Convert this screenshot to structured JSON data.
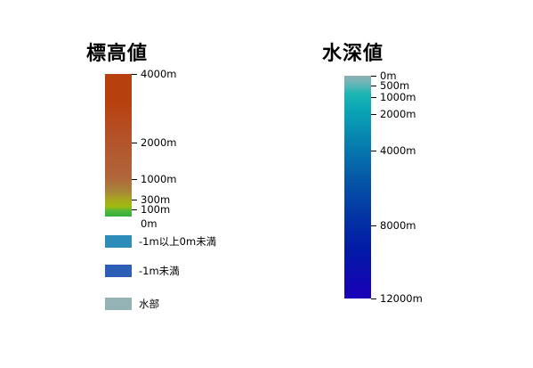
{
  "elevation": {
    "title": "標高値",
    "ticks": [
      {
        "label": "4000m",
        "frac": 0.0
      },
      {
        "label": "2000m",
        "frac": 0.48
      },
      {
        "label": "1000m",
        "frac": 0.74
      },
      {
        "label": "300m",
        "frac": 0.88
      },
      {
        "label": "100m",
        "frac": 0.95
      }
    ],
    "zero_label": "0m"
  },
  "legend": [
    {
      "label": "-1m以上0m未満",
      "color": "#2e8cb8"
    },
    {
      "label": "-1m未満",
      "color": "#2c5fb5"
    },
    {
      "label": "水部",
      "color": "#93b3b5"
    }
  ],
  "depth": {
    "title": "水深値",
    "ticks": [
      {
        "label": "0m",
        "frac": 0.0
      },
      {
        "label": "500m",
        "frac": 0.045
      },
      {
        "label": "1000m",
        "frac": 0.095
      },
      {
        "label": "2000m",
        "frac": 0.17
      },
      {
        "label": "4000m",
        "frac": 0.335
      },
      {
        "label": "8000m",
        "frac": 0.67
      },
      {
        "label": "12000m",
        "frac": 1.0
      }
    ]
  }
}
